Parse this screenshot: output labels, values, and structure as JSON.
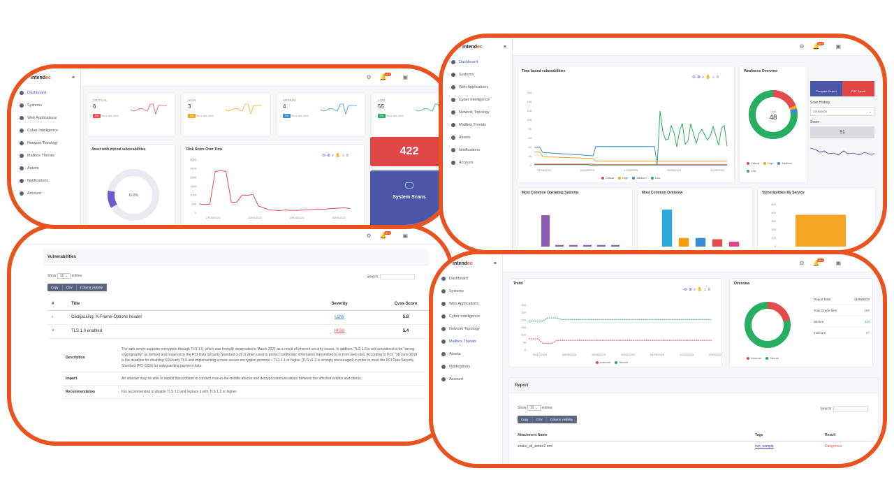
{
  "colors": {
    "frame": "#e8531f",
    "accent": "#4a56c8",
    "critical": "#e74c4c",
    "high": "#f5a623",
    "medium": "#3a8bd6",
    "low": "#27ae60"
  },
  "brand": {
    "logo_main": "intend",
    "logo_accent": "ec"
  },
  "sidebar": {
    "items": [
      {
        "label": "Dashboard",
        "icon": "dashboard-icon"
      },
      {
        "label": "Systems",
        "icon": "server-icon"
      },
      {
        "label": "Web Applications",
        "icon": "globe-icon"
      },
      {
        "label": "Cyber Intelligence",
        "icon": "eye-icon"
      },
      {
        "label": "Network Topology",
        "icon": "network-icon"
      },
      {
        "label": "Mailbox Threats",
        "icon": "mail-icon"
      },
      {
        "label": "Assets",
        "icon": "box-icon"
      },
      {
        "label": "Notifications",
        "icon": "bell-icon"
      },
      {
        "label": "Account",
        "icon": "user-icon"
      }
    ]
  },
  "topbar": {
    "badge": "99+"
  },
  "panel1": {
    "stats": [
      {
        "label": "CRITICAL",
        "value": "6",
        "pill": "0%",
        "note": "Since last week",
        "color": "#e74c4c"
      },
      {
        "label": "HIGH",
        "value": "3",
        "pill": "0%",
        "note": "Since last week",
        "color": "#f5a623"
      },
      {
        "label": "MEDIUM",
        "value": "4",
        "pill": "0%",
        "note": "Since last week",
        "color": "#3a8bd6"
      },
      {
        "label": "LOW",
        "value": "55",
        "pill": "0%",
        "note": "Since last week",
        "color": "#27ae60"
      }
    ],
    "critical_asset_title": "Asset with critical vulnerabilities",
    "donut_value": "11.0%",
    "risk_title": "Risk Score Over Time",
    "risk_y": [
      "3000",
      "2500",
      "2000",
      "1500",
      "1000",
      "500",
      "0"
    ],
    "risk_x": [
      "27/03/2023",
      "12/04/2023",
      "28/04/2023",
      "14/05/2023"
    ],
    "risk_values": [
      520,
      480,
      500,
      2350,
      2400,
      2350,
      600,
      620,
      1020,
      1000,
      1050,
      400,
      300,
      180,
      160,
      140,
      180,
      160,
      150,
      170,
      190,
      200,
      230,
      210,
      240,
      260,
      280,
      300,
      250
    ],
    "risk_score_label": "422",
    "scans_label": "System Scans"
  },
  "panel2": {
    "time_title": "Time based vulnerabilities",
    "time_y": [
      "160",
      "140",
      "120",
      "100",
      "80",
      "60",
      "40",
      "20",
      "0"
    ],
    "time_x": [
      "27/03/2023",
      "09/04/2023",
      "17/05/2023",
      "05/06/2023",
      "22/06/2023"
    ],
    "legend": [
      "Critical",
      "High",
      "Medium",
      "Low"
    ],
    "overview_title": "Weakness Overview",
    "donut_center_label": "Total",
    "donut_center_value": "48",
    "donut_legend": [
      "Critical",
      "High",
      "Medium",
      "Low"
    ],
    "btn_scan": "Compare Report",
    "btn_pdf": "PDF Export",
    "scan_history_label": "Scan History",
    "scan_history_value": "17/06/2023",
    "score_label": "Score",
    "score_value": "91",
    "os_title": "Most Common Operating Systems",
    "overview2_title": "Most Common Overview",
    "svc_title": "Vulnerabilities By Service",
    "os_bars": [
      6,
      0.3,
      0.3,
      0.3,
      0.3,
      0.3
    ],
    "overview_bars": [
      30,
      7,
      7,
      6,
      4
    ],
    "svc_y": [
      "500",
      "400",
      "300",
      "200",
      "100",
      "0"
    ],
    "svc_bars": [
      380
    ]
  },
  "panel3": {
    "header": "Vulnerabilities",
    "show_label": "Show",
    "show_value": "10",
    "entries_label": "entries",
    "search_label": "Search:",
    "buttons": [
      "Copy",
      "CSV",
      "Column visibility"
    ],
    "columns": [
      "#",
      "Title",
      "Severity",
      "Cvss Score"
    ],
    "rows": [
      {
        "toggle": "›",
        "title": "Clickjacking: X-Frame-Options header",
        "severity": "LOW",
        "score": "5.8"
      },
      {
        "toggle": "˅",
        "title": "TLS 1.0 enabled",
        "severity": "HIGH",
        "score": "5.4"
      }
    ],
    "details": [
      {
        "label": "Description",
        "text": "The web server supports encryption through TLS 1.0, which was formally deprecated in March 2021 as a result of inherent security issues. In addition, TLS 1.0 is not considered to be \"strong cryptography\" as defined and required by the PCI Data Security Standard 3.2(.1) when used to protect cardholder information transmitted to or from web sites. According to PCI, \"30 June 2018 is the deadline for disabling SSL/early TLS and implementing a more secure encryption protocol – TLS 1.1 or higher (TLS v1.2 is strongly encouraged) in order to meet the PCI Data Security Standard (PCI DSS) for safeguarding payment data."
      },
      {
        "label": "Impact",
        "text": "An attacker may be able to exploit this problem to conduct man-in-the-middle attacks and decrypt communications between the affected service and clients."
      },
      {
        "label": "Recommendation",
        "text": "It is recommended to disable TLS 1.0 and replace it with TLS 1.2 or higher."
      }
    ]
  },
  "panel4": {
    "trend_title": "Trend",
    "trend_y": [
      "300",
      "250",
      "200",
      "150",
      "100",
      "50",
      "0"
    ],
    "trend_x": [
      "06/12/2023",
      "08/08/2023",
      "16/08/2023",
      "25/08/2023",
      "04/09/2023",
      "12/09/2023",
      "20/09/2023"
    ],
    "trend_legend": [
      "Insecure",
      "Secure"
    ],
    "overview_title": "Overview",
    "overview_legend": [
      "Insecure",
      "Secure"
    ],
    "stats": [
      {
        "label": "Report Date",
        "value": "11/09/2023"
      },
      {
        "label": "Total Grade Item",
        "value": "186"
      },
      {
        "label": "Secure",
        "value": "119"
      },
      {
        "label": "Insecure",
        "value": "67"
      }
    ],
    "report_title": "Report",
    "show_label": "Show",
    "show_value": "10",
    "entries_label": "entries",
    "search_label": "Search:",
    "buttons": [
      "Copy",
      "CSV",
      "Column visibility"
    ],
    "columns": [
      "Attachment Name",
      "Tags",
      "Result"
    ],
    "rows": [
      {
        "name": "snake_oil_sektor2.eml",
        "tags": "cve, sample",
        "result": "Dangerous"
      }
    ]
  }
}
